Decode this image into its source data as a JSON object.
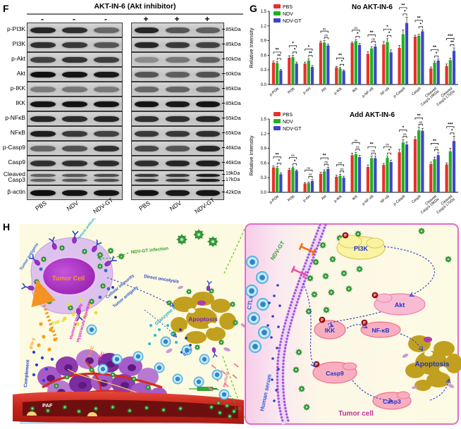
{
  "panelF": {
    "label": "F",
    "header": "AKT-IN-6 (Akt inhibitor)",
    "signs": [
      "-",
      "-",
      "-",
      "+",
      "+",
      "+"
    ],
    "lane_labels": [
      "PBS",
      "NDV",
      "NDV-GT",
      "PBS",
      "NDV",
      "NDV-GT"
    ],
    "rows": [
      {
        "label": "p-PI3K",
        "kda": "85kDa",
        "bands": [
          0.85,
          0.8,
          0.5,
          0.85,
          0.6,
          0.55
        ]
      },
      {
        "label": "PI3K",
        "kda": "85kDa",
        "bands": [
          0.8,
          0.75,
          0.6,
          0.85,
          0.75,
          0.7
        ]
      },
      {
        "label": "p-Akt",
        "kda": "60kDa",
        "bands": [
          0.7,
          0.78,
          0.72,
          0.3,
          0.42,
          0.55
        ]
      },
      {
        "label": "Akt",
        "kda": "60kDa",
        "bands": [
          0.97,
          0.95,
          0.92,
          0.6,
          0.55,
          0.62
        ]
      },
      {
        "label": "p-IKK",
        "kda": "85kDa",
        "bands": [
          0.38,
          0.42,
          0.4,
          0.5,
          0.52,
          0.5
        ]
      },
      {
        "label": "IKK",
        "kda": "85kDa",
        "bands": [
          0.95,
          0.95,
          0.95,
          0.95,
          0.92,
          0.95
        ]
      },
      {
        "label": "p-NFκB",
        "kda": "65kDa",
        "bands": [
          0.85,
          0.82,
          0.85,
          0.8,
          0.8,
          0.85
        ]
      },
      {
        "label": "NFκB",
        "kda": "65kDa",
        "bands": [
          0.9,
          0.75,
          0.7,
          0.75,
          0.76,
          0.8
        ]
      },
      {
        "label": "p-Casp9",
        "kda": "46kDa",
        "bands": [
          0.5,
          0.62,
          0.8,
          0.68,
          0.6,
          0.85
        ]
      },
      {
        "label": "Casp9",
        "kda": "46kDa",
        "bands": [
          0.8,
          0.8,
          0.82,
          0.8,
          0.85,
          0.9
        ]
      },
      {
        "label": "Cleaved Casp3",
        "kda": "19kDa",
        "kda2": "17kDa",
        "double": true,
        "bands": [
          0.55,
          0.6,
          0.65,
          0.75,
          0.75,
          0.9
        ]
      },
      {
        "label": "β-actin",
        "kda": "42kDa",
        "bands": [
          0.97,
          0.95,
          0.95,
          0.95,
          0.92,
          0.95
        ]
      }
    ]
  },
  "panelG": {
    "label": "G",
    "series_colors": {
      "PBS": "#e8302a",
      "NDV": "#1db21d",
      "NDV-GT": "#3d46c9"
    }
  },
  "chart_data": [
    {
      "type": "bar",
      "title": "No AKT-IN-6",
      "ylabel": "Relative Intensity",
      "ylim": [
        0,
        1.5
      ],
      "yticks": [
        0.0,
        0.3,
        0.6,
        0.9,
        1.2,
        1.5
      ],
      "grid": false,
      "legend_position": "top-left",
      "categories": [
        "p-PI3K",
        "PI3K",
        "p-Akt",
        "Akt",
        "p-IKK",
        "IKK",
        "p-NF-κB",
        "NF-κB",
        "p-Casp9",
        "Casp9",
        "Cleaved\nCasp3-19kDa",
        "Cleaved\nCasp3-17kDa"
      ],
      "series": [
        {
          "name": "PBS",
          "color": "#e8302a",
          "values": [
            0.45,
            0.55,
            0.43,
            0.86,
            0.35,
            0.85,
            0.63,
            0.82,
            0.75,
            0.98,
            0.33,
            0.38
          ],
          "errors": [
            0.03,
            0.04,
            0.03,
            0.03,
            0.02,
            0.02,
            0.04,
            0.06,
            0.05,
            0.03,
            0.03,
            0.04
          ]
        },
        {
          "name": "NDV",
          "color": "#1db21d",
          "values": [
            0.44,
            0.56,
            0.49,
            0.86,
            0.33,
            0.89,
            0.74,
            0.87,
            1.03,
            1.0,
            0.45,
            0.5
          ],
          "errors": [
            0.03,
            0.04,
            0.04,
            0.04,
            0.02,
            0.03,
            0.03,
            0.07,
            0.09,
            0.03,
            0.03,
            0.04
          ]
        },
        {
          "name": "NDV-GT",
          "color": "#3d46c9",
          "values": [
            0.29,
            0.43,
            0.36,
            0.8,
            0.28,
            0.81,
            0.78,
            0.66,
            1.26,
            1.09,
            0.49,
            0.69
          ],
          "errors": [
            0.02,
            0.03,
            0.03,
            0.03,
            0.02,
            0.03,
            0.04,
            0.05,
            0.12,
            0.03,
            0.03,
            0.06
          ]
        }
      ],
      "sig_outer": [
        "**",
        "*",
        "*",
        "ns",
        "**",
        "ns",
        "**",
        "*",
        "**",
        "**",
        "**",
        "***"
      ],
      "sig_inner": [
        "**",
        "*",
        "**",
        "ns",
        "*",
        "*",
        "ns",
        "*",
        "*",
        "*",
        "*",
        "**"
      ]
    },
    {
      "type": "bar",
      "title": "Add AKT-IN-6",
      "ylabel": "Relative Intensity",
      "ylim": [
        0,
        1.5
      ],
      "yticks": [
        0.0,
        0.3,
        0.6,
        0.9,
        1.2,
        1.5
      ],
      "grid": false,
      "legend_position": "top-left",
      "categories": [
        "p-PI3K",
        "PI3K",
        "p-Akt",
        "Akt",
        "p-IKK",
        "IKK",
        "p-NF-κB",
        "NF-κB",
        "p-Casp9",
        "Casp9",
        "Cleaved\nCasp3-19kDa",
        "Cleaved\nCasp3-17kDa"
      ],
      "series": [
        {
          "name": "PBS",
          "color": "#e8302a",
          "values": [
            0.51,
            0.46,
            0.18,
            0.38,
            0.32,
            0.76,
            0.52,
            0.56,
            0.82,
            1.09,
            0.58,
            0.57
          ],
          "errors": [
            0.03,
            0.03,
            0.02,
            0.03,
            0.03,
            0.04,
            0.04,
            0.03,
            0.06,
            0.05,
            0.04,
            0.03
          ]
        },
        {
          "name": "NDV",
          "color": "#1db21d",
          "values": [
            0.5,
            0.5,
            0.19,
            0.43,
            0.34,
            0.78,
            0.7,
            0.71,
            1.02,
            1.27,
            0.68,
            0.84
          ],
          "errors": [
            0.03,
            0.02,
            0.02,
            0.03,
            0.03,
            0.04,
            0.04,
            0.03,
            0.06,
            0.06,
            0.04,
            0.06
          ]
        },
        {
          "name": "NDV-GT",
          "color": "#3d46c9",
          "values": [
            0.37,
            0.44,
            0.23,
            0.48,
            0.3,
            0.72,
            0.7,
            0.62,
            0.98,
            1.26,
            0.76,
            1.05
          ],
          "errors": [
            0.03,
            0.02,
            0.03,
            0.03,
            0.03,
            0.04,
            0.04,
            0.04,
            0.05,
            0.05,
            0.05,
            0.1
          ]
        }
      ],
      "sig_outer": [
        "**",
        "ns",
        "ns",
        "**",
        "ns",
        "ns",
        "**",
        "ns",
        "*",
        "**",
        "**",
        "***"
      ],
      "sig_inner": [
        "*",
        "*",
        "ns",
        "ns",
        "ns",
        "ns",
        "ns",
        "*",
        "ns",
        "ns",
        "ns",
        "*"
      ]
    }
  ],
  "panelH": {
    "label": "H",
    "left": {
      "labels": {
        "tumor_cell": "Tumor Cell",
        "tumor_antigens1": "Tumor antigens",
        "natural_antibody": "Natural antibody",
        "ndv_gt_infection": "NDV-GT infection",
        "direct_oncolysis": "Direct oncolysis",
        "apoptosis": "Apoptosis",
        "cellular_immunity": "Cellular immunity",
        "tumor_antigens2": "Tumor antigens",
        "granzyme_b": "Granzyme B",
        "ctls": "CTLs",
        "perforin": "Perforin",
        "adcc": "ADCC",
        "cdc": "CDC",
        "humoral_immunity": "Humoral immunity",
        "hyperacute_rejection": "Hyperacute rejection",
        "tnf": "TNF-α",
        "ifn": "IFN-γ",
        "complement": "Complement",
        "paf": "PAF",
        "iv": "i.v."
      }
    },
    "right": {
      "labels": {
        "ndv_gt": "NDV-GT",
        "ctls": "CTLs",
        "human_serum": "Human serum",
        "pi3k": "PI3K",
        "akt": "Akt",
        "ikk": "IKK",
        "nfkb": "NF-κB",
        "casp9": "Casp9",
        "casp3": "Casp3",
        "apoptosis": "Apoptosis",
        "tumor_cell": "Tumor cell",
        "phosphate": "P"
      }
    }
  }
}
